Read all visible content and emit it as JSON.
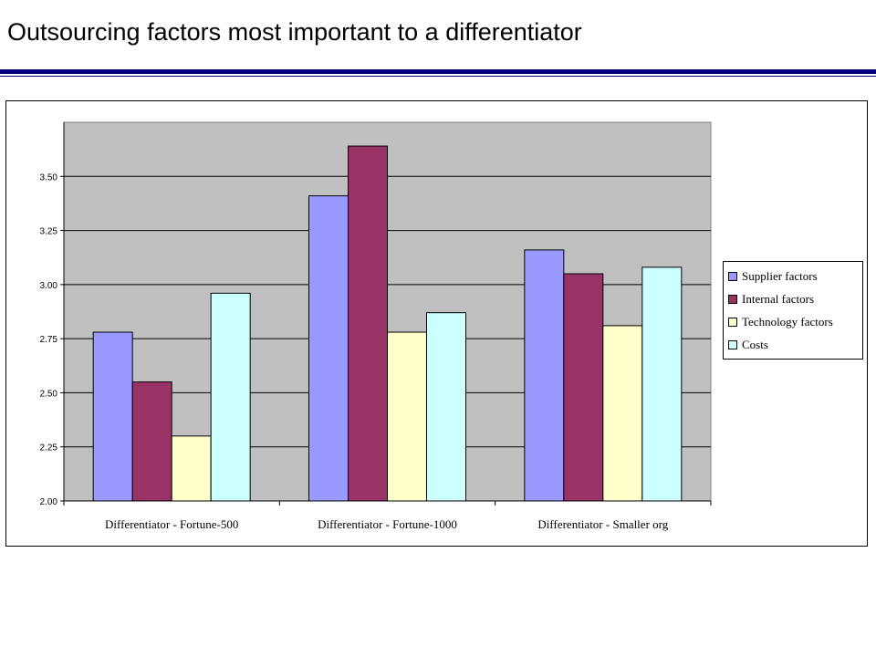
{
  "slide": {
    "title": "Outsourcing factors most important to a differentiator"
  },
  "chart_data": {
    "type": "bar",
    "title": "",
    "xlabel": "",
    "ylabel": "",
    "categories": [
      "Differentiator - Fortune-500",
      "Differentiator - Fortune-1000",
      "Differentiator - Smaller org"
    ],
    "series": [
      {
        "name": "Supplier factors",
        "color": "#9999ff",
        "values": [
          2.78,
          3.41,
          3.16
        ]
      },
      {
        "name": "Internal factors",
        "color": "#993366",
        "values": [
          2.55,
          3.64,
          3.05
        ]
      },
      {
        "name": "Technology factors",
        "color": "#ffffcc",
        "values": [
          2.3,
          2.78,
          2.81
        ]
      },
      {
        "name": "Costs",
        "color": "#ccffff",
        "values": [
          2.96,
          2.87,
          3.08
        ]
      }
    ],
    "ylim": [
      2.0,
      3.75
    ],
    "yticks": [
      "2.00",
      "2.25",
      "2.50",
      "2.75",
      "3.00",
      "3.25",
      "3.50"
    ],
    "grid": true,
    "plot_background": "#c0c0c0",
    "legend_position": "right"
  }
}
